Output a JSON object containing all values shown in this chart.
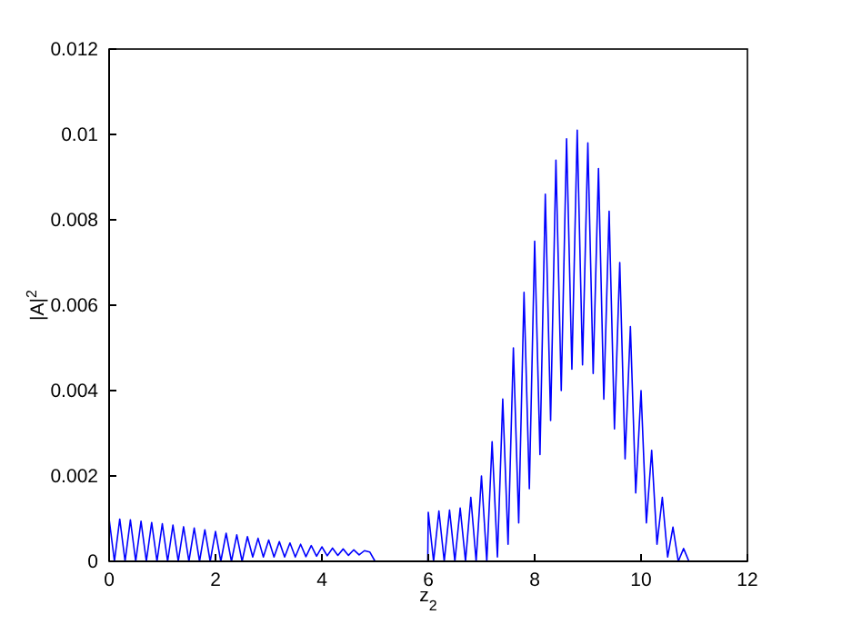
{
  "chart_data": {
    "type": "line",
    "xlabel": "z$_{2}$",
    "ylabel": "|A|$^{2}$",
    "xlim": [
      0,
      12
    ],
    "ylim": [
      0,
      0.012
    ],
    "xticks": [
      0,
      2,
      4,
      6,
      8,
      10,
      12
    ],
    "yticks": [
      0,
      0.002,
      0.004,
      0.006,
      0.008,
      0.01,
      0.012
    ],
    "grid": false,
    "marker": "none",
    "line_style": "solid",
    "series": [
      {
        "color": "#0000ff",
        "x": [
          0,
          0.1,
          0.2,
          0.3,
          0.4,
          0.5,
          0.6,
          0.7,
          0.8,
          0.9,
          1.0,
          1.1,
          1.2,
          1.3,
          1.4,
          1.5,
          1.6,
          1.7,
          1.8,
          1.9,
          2.0,
          2.1,
          2.2,
          2.3,
          2.4,
          2.5,
          2.6,
          2.7,
          2.8,
          2.9,
          3.0,
          3.1,
          3.2,
          3.3,
          3.4,
          3.5,
          3.6,
          3.7,
          3.8,
          3.9,
          4.0,
          4.1,
          4.2,
          4.3,
          4.4,
          4.5,
          4.6,
          4.7,
          4.8,
          4.9,
          5.0,
          5.99,
          6.0,
          6.1,
          6.2,
          6.3,
          6.4,
          6.5,
          6.6,
          6.7,
          6.8,
          6.9,
          7.0,
          7.1,
          7.2,
          7.3,
          7.4,
          7.5,
          7.6,
          7.7,
          7.8,
          7.9,
          8.0,
          8.1,
          8.2,
          8.3,
          8.4,
          8.5,
          8.6,
          8.7,
          8.8,
          8.9,
          9.0,
          9.1,
          9.2,
          9.3,
          9.4,
          9.5,
          9.6,
          9.7,
          9.8,
          9.9,
          10.0,
          10.1,
          10.2,
          10.3,
          10.4,
          10.5,
          10.6,
          10.7,
          10.8,
          10.9,
          11.0
        ],
        "values": [
          0.001,
          0,
          0.00099,
          0,
          0.00097,
          0,
          0.00094,
          0,
          0.00091,
          0,
          0.00088,
          0,
          0.00085,
          0,
          0.00081,
          0,
          0.00078,
          0,
          0.00074,
          0,
          0.0007,
          0,
          0.00066,
          0,
          0.00062,
          0,
          0.00058,
          0.0001,
          0.00054,
          0.0001,
          0.0005,
          0.0001,
          0.00046,
          0.0001,
          0.00043,
          0.0001,
          0.0004,
          0.00011,
          0.00037,
          0.00012,
          0.00034,
          0.00013,
          0.00031,
          0.00014,
          0.00029,
          0.00014,
          0.00027,
          0.00015,
          0.00025,
          0.00022,
          0,
          0,
          0.00115,
          0,
          0.00118,
          0,
          0.0012,
          0,
          0.00125,
          0,
          0.0015,
          0,
          0.002,
          0,
          0.0028,
          0.0001,
          0.0038,
          0.0004,
          0.005,
          0.0009,
          0.0063,
          0.0017,
          0.0075,
          0.0025,
          0.0086,
          0.0033,
          0.0094,
          0.004,
          0.0099,
          0.0045,
          0.0101,
          0.0046,
          0.0098,
          0.0044,
          0.0092,
          0.0038,
          0.0082,
          0.0031,
          0.007,
          0.0024,
          0.0055,
          0.0016,
          0.004,
          0.0009,
          0.0026,
          0.0004,
          0.0015,
          0.0001,
          0.0008,
          0,
          0.0003,
          0,
          0
        ]
      }
    ]
  }
}
